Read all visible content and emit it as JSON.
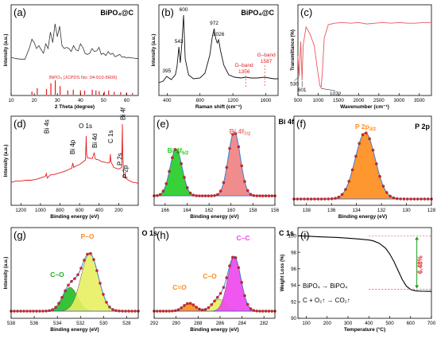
{
  "chart_data": [
    {
      "id": "a",
      "panel_label": "(a)",
      "header": "BiPO₄@C",
      "type": "line",
      "xlabel": "2 Theta (degree)",
      "ylabel": "Intensity (a.u.)",
      "xlim": [
        10,
        65
      ],
      "xticks": [
        10,
        20,
        30,
        40,
        50,
        60
      ],
      "series": [
        {
          "x": [
            10,
            12,
            14,
            16,
            17,
            18,
            19,
            20,
            21,
            22,
            23,
            24,
            25,
            26,
            27,
            28,
            29,
            30,
            31,
            32,
            33,
            34,
            35,
            36,
            37,
            38,
            39,
            40,
            41,
            42,
            43,
            44,
            45,
            46,
            47,
            48,
            49,
            50,
            51,
            52,
            53,
            54,
            55,
            56,
            57,
            58,
            59,
            60,
            61,
            62,
            63,
            64,
            65
          ],
          "y": [
            0.35,
            0.33,
            0.32,
            0.32,
            0.42,
            0.52,
            0.66,
            0.6,
            0.5,
            0.55,
            0.48,
            0.42,
            0.58,
            0.5,
            0.78,
            0.6,
            0.92,
            0.7,
            0.88,
            0.55,
            0.5,
            0.52,
            0.5,
            0.45,
            0.55,
            0.48,
            0.46,
            0.58,
            0.52,
            0.42,
            0.4,
            0.42,
            0.5,
            0.45,
            0.46,
            0.52,
            0.4,
            0.42,
            0.38,
            0.45,
            0.4,
            0.42,
            0.36,
            0.38,
            0.4,
            0.35,
            0.36,
            0.34,
            0.35,
            0.34,
            0.34,
            0.33,
            0.33
          ]
        }
      ],
      "reference": {
        "label": "BiPO₄ (JCPDS No: 04-010-5606)",
        "x": [
          19.0,
          21.3,
          25.3,
          27.2,
          29.1,
          31.2,
          34.5,
          36.9,
          40.0,
          41.8,
          45.1,
          46.7,
          48.1,
          50.3,
          52.2,
          54.6,
          57.4,
          59.9,
          62.5
        ],
        "y": [
          0.22,
          0.45,
          0.4,
          0.8,
          1.0,
          0.6,
          0.3,
          0.35,
          0.3,
          0.28,
          0.35,
          0.3,
          0.25,
          0.22,
          0.3,
          0.2,
          0.18,
          0.15,
          0.12
        ]
      }
    },
    {
      "id": "b",
      "panel_label": "(b)",
      "header": "BiPO₄@C",
      "type": "line",
      "xlabel": "Raman shift (cm⁻¹)",
      "ylabel": "Intensity (a.u.)",
      "xlim": [
        300,
        1750
      ],
      "xticks": [
        400,
        800,
        1200,
        1600
      ],
      "series": [
        {
          "x": [
            300,
            350,
            395,
            450,
            500,
            520,
            543,
            560,
            580,
            600,
            620,
            660,
            720,
            800,
            860,
            920,
            950,
            972,
            990,
            1010,
            1026,
            1050,
            1090,
            1150,
            1220,
            1300,
            1356,
            1420,
            1500,
            1587,
            1640,
            1700,
            1750
          ],
          "y": [
            0.1,
            0.12,
            0.18,
            0.14,
            0.2,
            0.3,
            0.55,
            0.35,
            0.6,
            0.95,
            0.4,
            0.2,
            0.15,
            0.16,
            0.22,
            0.45,
            0.68,
            0.78,
            0.66,
            0.6,
            0.64,
            0.5,
            0.32,
            0.2,
            0.17,
            0.16,
            0.17,
            0.16,
            0.16,
            0.17,
            0.16,
            0.15,
            0.15
          ]
        }
      ],
      "peak_labels": [
        {
          "text": "395",
          "x": 395,
          "y": 0.2
        },
        {
          "text": "543",
          "x": 543,
          "y": 0.57
        },
        {
          "text": "600",
          "x": 600,
          "y": 0.97
        },
        {
          "text": "972",
          "x": 972,
          "y": 0.8
        },
        {
          "text": "1026",
          "x": 1026,
          "y": 0.66
        }
      ],
      "bands": [
        {
          "name": "D–band",
          "value": "1356",
          "x": 1356
        },
        {
          "name": "G–band",
          "value": "1587",
          "x": 1587
        }
      ]
    },
    {
      "id": "c",
      "panel_label": "(c)",
      "type": "line",
      "xlabel": "Wavenumber (cm⁻¹)",
      "ylabel": "Transmittance (%)",
      "xlim": [
        500,
        3800
      ],
      "xticks": [
        500,
        1000,
        1500,
        2000,
        2500,
        3000,
        3500
      ],
      "series": [
        {
          "x": [
            500,
            530,
            545,
            570,
            601,
            630,
            700,
            800,
            900,
            950,
            1000,
            1040,
            1072,
            1100,
            1150,
            1250,
            1400,
            1600,
            1800,
            2000,
            2200,
            2400,
            2600,
            2800,
            3000,
            3200,
            3400,
            3600,
            3800
          ],
          "y": [
            0.45,
            0.18,
            0.4,
            0.65,
            0.12,
            0.6,
            0.85,
            0.75,
            0.6,
            0.4,
            0.2,
            0.05,
            0.02,
            0.2,
            0.7,
            0.88,
            0.9,
            0.91,
            0.9,
            0.91,
            0.89,
            0.9,
            0.91,
            0.9,
            0.91,
            0.9,
            0.9,
            0.91,
            0.91
          ]
        }
      ],
      "peak_labels": [
        {
          "text": "530",
          "x": 530,
          "y": 0.18
        },
        {
          "text": "601",
          "x": 601,
          "y": 0.12
        },
        {
          "text": "1072",
          "x": 1072,
          "y": 0.02
        }
      ]
    },
    {
      "id": "d",
      "panel_label": "(d)",
      "type": "line",
      "xlabel": "Binding energy (eV)",
      "ylabel": "Intensity (a.u.)",
      "xlim": [
        1300,
        0
      ],
      "xticks": [
        1200,
        1000,
        800,
        600,
        400,
        200
      ],
      "series": [
        {
          "x": [
            1300,
            1250,
            1200,
            1150,
            1100,
            1050,
            1000,
            980,
            950,
            940,
            930,
            900,
            850,
            800,
            750,
            700,
            680,
            670,
            660,
            640,
            600,
            560,
            540,
            532,
            528,
            520,
            470,
            450,
            442,
            440,
            430,
            400,
            380,
            300,
            290,
            285,
            280,
            250,
            200,
            170,
            165,
            162,
            160,
            150,
            135,
            133,
            130,
            100,
            50,
            20,
            0
          ],
          "y": [
            0.22,
            0.24,
            0.24,
            0.25,
            0.25,
            0.26,
            0.28,
            0.29,
            0.3,
            0.34,
            0.28,
            0.32,
            0.33,
            0.35,
            0.37,
            0.4,
            0.41,
            0.48,
            0.42,
            0.44,
            0.46,
            0.5,
            0.52,
            0.84,
            0.6,
            0.55,
            0.54,
            0.62,
            0.55,
            0.54,
            0.53,
            0.52,
            0.5,
            0.48,
            0.5,
            0.6,
            0.5,
            0.42,
            0.4,
            0.42,
            0.78,
            1.0,
            0.7,
            0.3,
            0.28,
            0.36,
            0.28,
            0.25,
            0.22,
            0.22,
            0.2
          ]
        }
      ],
      "peak_labels": [
        {
          "text": "Bi 4s",
          "x": 940
        },
        {
          "text": "Bi 4p",
          "x": 675
        },
        {
          "text": "O 1s",
          "x": 532
        },
        {
          "text": "Bi 4d",
          "x": 445
        },
        {
          "text": "C 1s",
          "x": 285
        },
        {
          "text": "P 2s",
          "x": 190
        },
        {
          "text": "Bi 4f",
          "x": 160
        },
        {
          "text": "P 2p",
          "x": 133
        }
      ]
    },
    {
      "id": "e",
      "panel_label": "(e)",
      "header": "Bi 4f",
      "type": "line",
      "xlabel": "Binding energy (eV)",
      "ylabel": "",
      "xlim": [
        167,
        156
      ],
      "xticks": [
        166,
        164,
        162,
        160,
        158,
        156
      ],
      "components": [
        {
          "name": "Bi 4f5/2",
          "label_main": "Bi 4f",
          "label_sub": "5/2",
          "center": 165.0,
          "amp": 0.6,
          "sigma": 0.55,
          "color": "#22cc22",
          "label_color": "#22cc22"
        },
        {
          "name": "Bi 4f7/2",
          "label_main": "Bi 4f",
          "label_sub": "7/2",
          "center": 159.7,
          "amp": 0.82,
          "sigma": 0.55,
          "color": "#f08080",
          "label_color": "#e87878"
        }
      ],
      "baseline": 0.08
    },
    {
      "id": "f",
      "panel_label": "(f)",
      "header": "P 2p",
      "type": "line",
      "xlabel": "Binding energy (eV)",
      "ylabel": "",
      "xlim": [
        139,
        128
      ],
      "xticks": [
        138,
        136,
        134,
        132,
        130,
        128
      ],
      "components": [
        {
          "name": "P 2p3/2",
          "label_main": "P 2p",
          "label_sub": "3/2",
          "center": 133.3,
          "amp": 0.85,
          "sigma": 0.8,
          "color": "#ff8c1a",
          "label_color": "#ff8c1a"
        }
      ],
      "baseline": 0.04
    },
    {
      "id": "g",
      "panel_label": "(g)",
      "header": "O 1s",
      "type": "line",
      "xlabel": "Binding energy (eV)",
      "ylabel": "Intensity (a.u.)",
      "xlim": [
        538,
        527
      ],
      "xticks": [
        538,
        536,
        534,
        532,
        530,
        528
      ],
      "components": [
        {
          "name": "C–O",
          "label_main": "C–O",
          "label_sub": "",
          "center": 532.9,
          "amp": 0.3,
          "sigma": 0.65,
          "color": "#22bb22",
          "label_color": "#22aa22"
        },
        {
          "name": "P–O",
          "label_main": "P–O",
          "label_sub": "",
          "center": 531.2,
          "amp": 0.72,
          "sigma": 0.75,
          "color": "#e8f060",
          "label_color": "#ff8c1a"
        }
      ],
      "baseline": 0.05
    },
    {
      "id": "h",
      "panel_label": "(h)",
      "header": "C 1s",
      "type": "line",
      "xlabel": "Binding energy (eV)",
      "ylabel": "",
      "xlim": [
        292,
        281
      ],
      "xticks": [
        292,
        290,
        288,
        286,
        284,
        282
      ],
      "components": [
        {
          "name": "C=O",
          "label_main": "C=O",
          "label_sub": "",
          "center": 288.8,
          "amp": 0.1,
          "sigma": 0.55,
          "color": "#ff8c1a",
          "label_color": "#ff8c1a"
        },
        {
          "name": "C–O",
          "label_main": "C–O",
          "label_sub": "",
          "center": 286.1,
          "amp": 0.15,
          "sigma": 0.6,
          "color": "#e8f060",
          "label_color": "#ff8c1a"
        },
        {
          "name": "C–C",
          "label_main": "C–C",
          "label_sub": "",
          "center": 284.7,
          "amp": 0.68,
          "sigma": 0.6,
          "color": "#ee44ee",
          "label_color": "#ee44ee"
        }
      ],
      "baseline": 0.05
    },
    {
      "id": "i",
      "panel_label": "(i)",
      "type": "line",
      "xlabel": "Temperature (°C)",
      "ylabel": "Weight Loss (%)",
      "xlim": [
        60,
        700
      ],
      "ylim": [
        90,
        101
      ],
      "xticks": [
        100,
        200,
        300,
        400,
        500,
        600,
        700
      ],
      "yticks": [
        90,
        92,
        94,
        96,
        98,
        100
      ],
      "series": [
        {
          "x": [
            60,
            100,
            150,
            200,
            250,
            300,
            350,
            400,
            420,
            450,
            480,
            500,
            520,
            540,
            560,
            580,
            600,
            620,
            640,
            660,
            680,
            700
          ],
          "y": [
            100,
            99.97,
            99.9,
            99.85,
            99.8,
            99.72,
            99.62,
            99.5,
            99.4,
            99.1,
            98.5,
            97.8,
            96.9,
            95.8,
            94.7,
            93.9,
            93.5,
            93.35,
            93.3,
            93.28,
            93.27,
            93.26
          ]
        }
      ],
      "loss_label": "6.48%",
      "loss_from": 100,
      "loss_to": 93.52,
      "annotations": [
        "BiPO₄ → BiPO₄",
        "C + O₂↑ → CO₂↑"
      ]
    }
  ]
}
